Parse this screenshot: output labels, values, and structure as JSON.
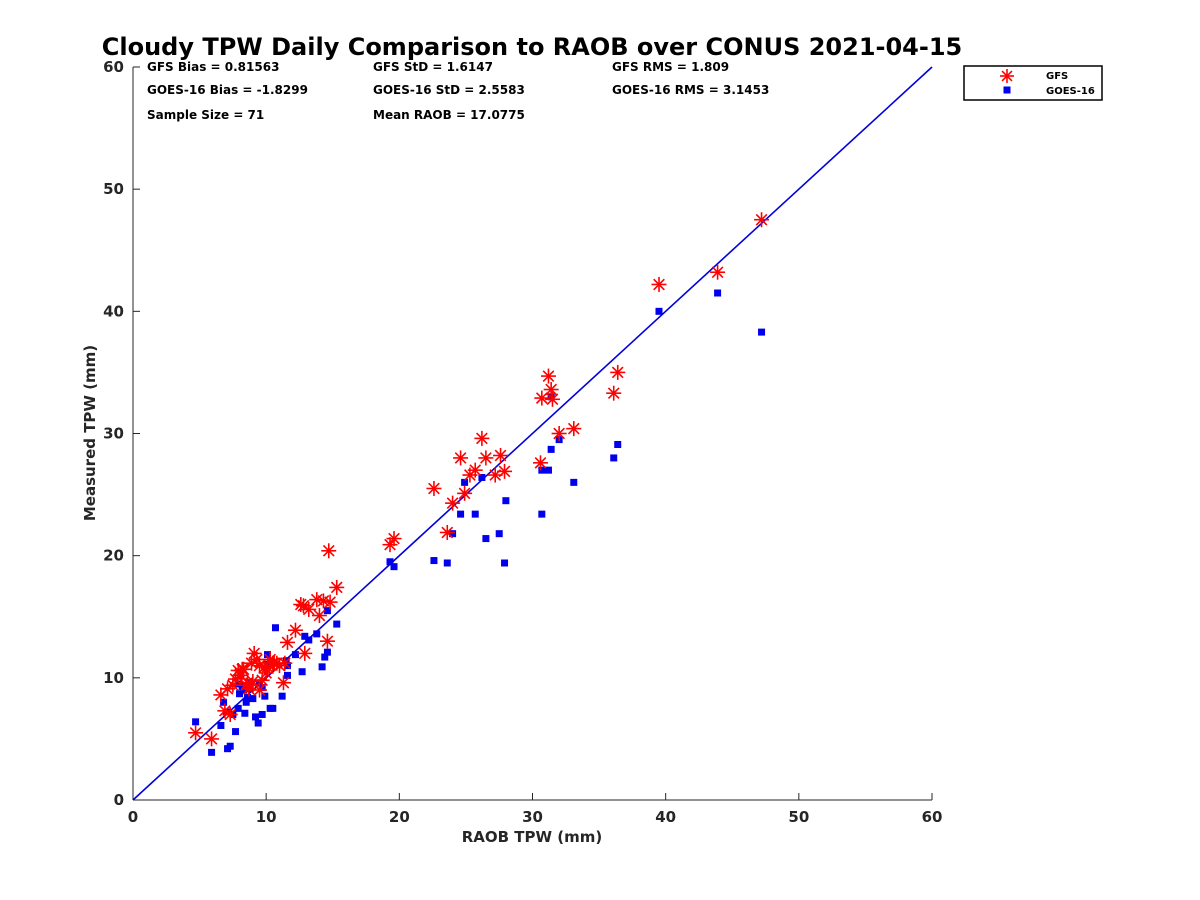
{
  "chart_data": {
    "type": "scatter",
    "title": "Cloudy TPW Daily Comparison to RAOB over CONUS 2021-04-15",
    "xlabel": "RAOB TPW (mm)",
    "ylabel": "Measured TPW (mm)",
    "xlim": [
      0,
      60
    ],
    "ylim": [
      0,
      60
    ],
    "xticks": [
      "0",
      "10",
      "20",
      "30",
      "40",
      "50",
      "60"
    ],
    "yticks": [
      "0",
      "10",
      "20",
      "30",
      "40",
      "50",
      "60"
    ],
    "grid": false,
    "legend_position": "top-right",
    "reference_line": {
      "type": "one-to-one",
      "from": [
        0,
        0
      ],
      "to": [
        60,
        60
      ],
      "color": "#0000dd"
    },
    "stats": [
      [
        "GFS Bias = 0.81563",
        "GFS StD = 1.6147",
        "GFS RMS = 1.809"
      ],
      [
        "GOES-16 Bias = -1.8299",
        "GOES-16 StD = 2.5583",
        "GOES-16 RMS = 3.1453"
      ],
      [
        "Sample Size = 71",
        "Mean RAOB = 17.0775",
        ""
      ]
    ],
    "series": [
      {
        "name": "GFS",
        "marker": "asterisk",
        "color": "#ff0000",
        "x": [
          4.7,
          5.9,
          6.6,
          6.9,
          7.1,
          7.3,
          7.5,
          7.7,
          7.9,
          8.1,
          8.3,
          8.5,
          8.7,
          8.9,
          9.1,
          9.3,
          9.5,
          9.7,
          9.9,
          10.1,
          10.3,
          10.5,
          10.8,
          11.3,
          11.6,
          12.2,
          12.6,
          12.9,
          13.2,
          13.8,
          14.0,
          14.3,
          14.6,
          15.3,
          19.3,
          19.6,
          22.6,
          23.6,
          24.0,
          24.6,
          24.9,
          25.3,
          25.7,
          26.2,
          26.5,
          27.2,
          27.6,
          27.9,
          30.7,
          30.6,
          31.2,
          31.4,
          31.5,
          32.0,
          33.1,
          36.1,
          36.4,
          39.5,
          43.9,
          47.2,
          14.7,
          14.8,
          12.8,
          10.0,
          9.5,
          8.6,
          11.0,
          8.2,
          9.0,
          10.6,
          11.4
        ],
        "y": [
          5.5,
          5.0,
          8.6,
          7.3,
          9.1,
          7.0,
          9.4,
          9.9,
          10.6,
          10.2,
          10.7,
          9.4,
          9.1,
          11.2,
          12.0,
          11.5,
          9.0,
          9.8,
          10.9,
          10.9,
          11.5,
          11.2,
          11.2,
          9.6,
          12.9,
          13.9,
          16.0,
          12.0,
          15.6,
          16.4,
          15.1,
          16.3,
          13.0,
          17.4,
          20.9,
          21.4,
          25.5,
          21.9,
          24.3,
          28.0,
          25.1,
          26.6,
          27.0,
          29.6,
          28.0,
          26.6,
          28.2,
          26.9,
          32.9,
          27.6,
          34.7,
          33.6,
          32.8,
          30.0,
          30.4,
          33.3,
          35.0,
          42.2,
          43.2,
          47.5,
          20.4,
          16.2,
          15.9,
          10.4,
          11.0,
          9.6,
          11.0,
          10.7,
          9.7,
          11.2,
          11.2
        ]
      },
      {
        "name": "GOES-16",
        "marker": "square",
        "color": "#0000ee",
        "x": [
          4.7,
          5.9,
          6.6,
          6.8,
          7.0,
          7.1,
          7.3,
          7.5,
          7.7,
          7.9,
          8.1,
          8.2,
          8.4,
          8.6,
          8.8,
          9.0,
          9.2,
          9.4,
          9.7,
          9.9,
          10.1,
          10.3,
          10.5,
          10.7,
          11.2,
          11.6,
          12.2,
          12.7,
          13.2,
          13.8,
          14.2,
          14.4,
          14.6,
          15.3,
          19.3,
          19.6,
          22.6,
          23.6,
          24.0,
          24.6,
          24.9,
          25.7,
          26.2,
          26.5,
          27.5,
          27.9,
          28.0,
          30.7,
          30.7,
          31.2,
          31.4,
          31.4,
          32.0,
          33.1,
          36.1,
          36.4,
          39.5,
          43.9,
          47.2,
          8.3,
          8.0,
          9.5,
          7.9,
          11.6,
          12.9,
          14.6,
          10.2,
          8.5,
          9.7,
          11.5,
          8.8
        ],
        "y": [
          6.4,
          3.9,
          6.1,
          8.0,
          7.2,
          4.2,
          4.4,
          7.0,
          5.6,
          7.5,
          10.2,
          9.3,
          7.1,
          8.4,
          9.6,
          8.3,
          6.8,
          6.3,
          7.0,
          8.5,
          11.9,
          7.5,
          7.5,
          14.1,
          8.5,
          10.2,
          11.9,
          10.5,
          13.1,
          13.6,
          10.9,
          11.7,
          12.1,
          14.4,
          19.5,
          19.1,
          19.6,
          19.4,
          21.8,
          23.4,
          26.0,
          23.4,
          26.4,
          21.4,
          21.8,
          19.4,
          24.5,
          27.0,
          23.4,
          27.0,
          28.7,
          33.0,
          29.5,
          26.0,
          28.0,
          29.1,
          40.0,
          41.5,
          38.3,
          9.0,
          8.7,
          9.6,
          9.5,
          11.0,
          13.4,
          15.5,
          11.1,
          8.0,
          9.2,
          11.4,
          9.1
        ]
      }
    ]
  }
}
